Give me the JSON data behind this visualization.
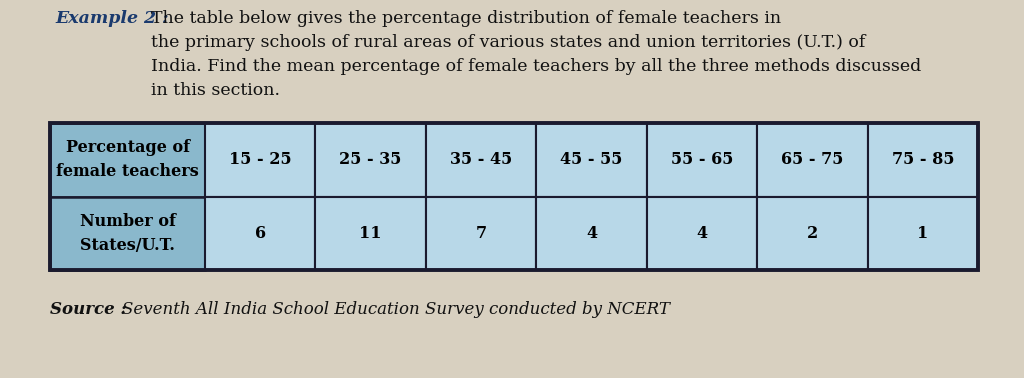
{
  "title_bold": "Example 2 : ",
  "title_rest": "The table below gives the percentage distribution of female teachers in\nthe primary schools of rural areas of various states and union territories (U.T.) of\nIndia. Find the mean percentage of female teachers by all the three methods discussed\nin this section.",
  "col_header_label": "Percentage of\nfemale teachers",
  "row_header_label": "Number of\nStates/U.T.",
  "col_headers": [
    "15 - 25",
    "25 - 35",
    "35 - 45",
    "45 - 55",
    "55 - 65",
    "65 - 75",
    "75 - 85"
  ],
  "row_values": [
    "6",
    "11",
    "7",
    "4",
    "4",
    "2",
    "1"
  ],
  "source_bold": "Source : ",
  "source_italic": "Seventh All India School Education Survey conducted by NCERT",
  "table_light_bg": "#b8d8e8",
  "table_dark_bg": "#8ab8cc",
  "border_color": "#1a1a2e",
  "page_bg": "#d8d0c0",
  "title_color_bold": "#1a3a6e",
  "title_color_normal": "#111111",
  "source_color": "#111111",
  "font_size_title": 12.5,
  "font_size_table": 11.5,
  "font_size_source": 12
}
